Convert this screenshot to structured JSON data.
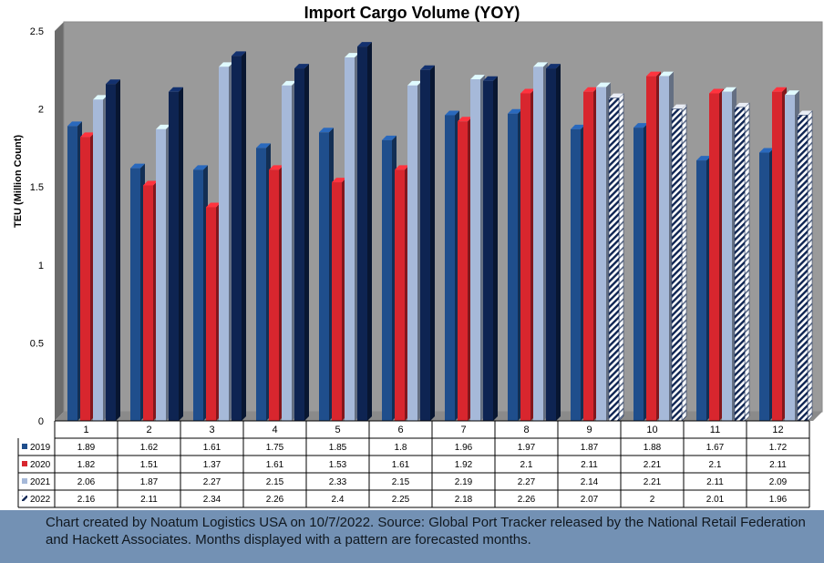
{
  "chart_data": {
    "type": "bar",
    "title": "Import Cargo Volume (YOY)",
    "xlabel": "",
    "ylabel": "TEU (Million Count)",
    "ylim": [
      0,
      2.5
    ],
    "yticks": [
      "0",
      "0.5",
      "1",
      "1.5",
      "2",
      "2.5"
    ],
    "categories": [
      "1",
      "2",
      "3",
      "4",
      "5",
      "6",
      "7",
      "8",
      "9",
      "10",
      "11",
      "12"
    ],
    "forecast_from_category": "9",
    "grid": false,
    "legend": "data-table",
    "series": [
      {
        "name": "2019",
        "color": "#1f4e8c",
        "values": [
          1.89,
          1.62,
          1.61,
          1.75,
          1.85,
          1.8,
          1.96,
          1.97,
          1.87,
          1.88,
          1.67,
          1.72
        ],
        "labels": [
          "1.89",
          "1.62",
          "1.61",
          "1.75",
          "1.85",
          "1.8",
          "1.96",
          "1.97",
          "1.87",
          "1.88",
          "1.67",
          "1.72"
        ]
      },
      {
        "name": "2020",
        "color": "#d8262e",
        "values": [
          1.82,
          1.51,
          1.37,
          1.61,
          1.53,
          1.61,
          1.92,
          2.1,
          2.11,
          2.21,
          2.1,
          2.11
        ],
        "labels": [
          "1.82",
          "1.51",
          "1.37",
          "1.61",
          "1.53",
          "1.61",
          "1.92",
          "2.1",
          "2.11",
          "2.21",
          "2.1",
          "2.11"
        ]
      },
      {
        "name": "2021",
        "color": "#a6b9d9",
        "values": [
          2.06,
          1.87,
          2.27,
          2.15,
          2.33,
          2.15,
          2.19,
          2.27,
          2.14,
          2.21,
          2.11,
          2.09
        ],
        "labels": [
          "2.06",
          "1.87",
          "2.27",
          "2.15",
          "2.33",
          "2.15",
          "2.19",
          "2.27",
          "2.14",
          "2.21",
          "2.11",
          "2.09"
        ]
      },
      {
        "name": "2022",
        "color": "#0e2452",
        "values": [
          2.16,
          2.11,
          2.34,
          2.26,
          2.4,
          2.25,
          2.18,
          2.26,
          2.07,
          2,
          2.01,
          1.96
        ],
        "labels": [
          "2.16",
          "2.11",
          "2.34",
          "2.26",
          "2.4",
          "2.25",
          "2.18",
          "2.26",
          "2.07",
          "2",
          "2.01",
          "1.96"
        ]
      }
    ]
  },
  "caption": "Chart created by Noatum Logistics USA on 10/7/2022. Source: Global Port Tracker released by the National Retail Federation and Hackett Associates. Months displayed with a pattern are forecasted months."
}
